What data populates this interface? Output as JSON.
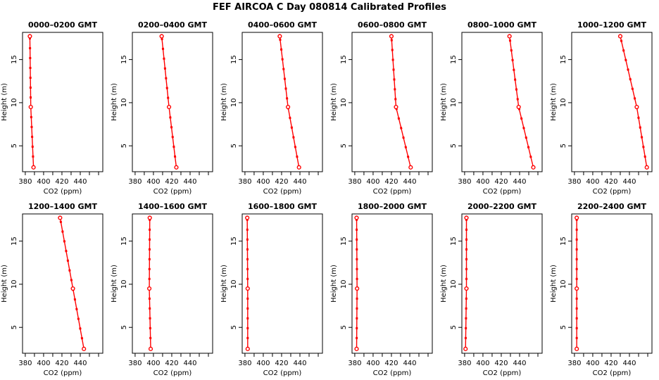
{
  "title": "FEF AIRCOA C  Day 080814  Calibrated Profiles",
  "colors": {
    "line": "#ff0000",
    "axis": "#000000",
    "text": "#000000",
    "background": "#ffffff"
  },
  "chart_data": {
    "type": "line",
    "title": "FEF AIRCOA C  Day 080814  Calibrated Profiles",
    "xlabel": "CO2 (ppm)",
    "ylabel": "Height (m)",
    "xlim": [
      377,
      464.6
    ],
    "ylim": [
      2.0,
      18.15
    ],
    "x_ticks": [
      380,
      390,
      400,
      410,
      420,
      430,
      440,
      450,
      460
    ],
    "x_labeled_ticks": [
      380,
      400,
      420,
      440
    ],
    "y_ticks": [
      5,
      10,
      15
    ],
    "grid": false,
    "legend": "none",
    "layout": {
      "rows": 2,
      "cols": 6
    },
    "marker": "open-circle",
    "heights_m": [
      2.5,
      9.5,
      17.7
    ],
    "panels": [
      {
        "title": "0000–0200 GMT",
        "co2_ppm": [
          389,
          386,
          385
        ]
      },
      {
        "title": "0200–0400 GMT",
        "co2_ppm": [
          425,
          417,
          409
        ]
      },
      {
        "title": "0400–0600 GMT",
        "co2_ppm": [
          439,
          427,
          418
        ]
      },
      {
        "title": "0600–0800 GMT",
        "co2_ppm": [
          441,
          425,
          420
        ]
      },
      {
        "title": "0800–1000 GMT",
        "co2_ppm": [
          455,
          439,
          429
        ]
      },
      {
        "title": "1000–1200 GMT",
        "co2_ppm": [
          459,
          448,
          430
        ]
      },
      {
        "title": "1200–1400 GMT",
        "co2_ppm": [
          444,
          432,
          418
        ]
      },
      {
        "title": "1400–1600 GMT",
        "co2_ppm": [
          397,
          395.5,
          396
        ]
      },
      {
        "title": "1600–1800 GMT",
        "co2_ppm": [
          383,
          383,
          382.5
        ]
      },
      {
        "title": "1800–2000 GMT",
        "co2_ppm": [
          382,
          382.5,
          382
        ]
      },
      {
        "title": "2000–2200 GMT",
        "co2_ppm": [
          381,
          382,
          382
        ]
      },
      {
        "title": "2200–2400 GMT",
        "co2_ppm": [
          382.5,
          382.5,
          382.5
        ]
      }
    ]
  }
}
